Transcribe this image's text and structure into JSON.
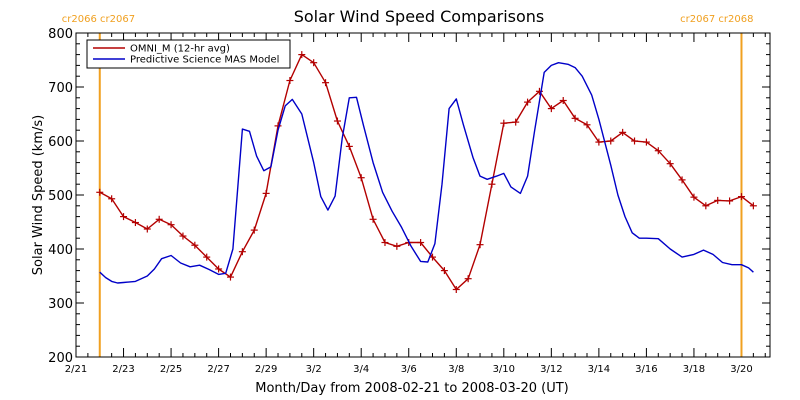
{
  "chart_data": {
    "type": "line",
    "title": "Solar Wind Speed Comparisons",
    "xlabel": "Month/Day from 2008-02-21 to 2008-03-20 (UT)",
    "ylabel": "Solar Wind Speed (km/s)",
    "ylim": [
      200,
      800
    ],
    "y_ticks": [
      200,
      300,
      400,
      500,
      600,
      700,
      800
    ],
    "x_range_days": [
      0,
      29.2
    ],
    "x_ticks": [
      {
        "day": 0,
        "label": "2/21"
      },
      {
        "day": 2,
        "label": "2/23"
      },
      {
        "day": 4,
        "label": "2/25"
      },
      {
        "day": 6,
        "label": "2/27"
      },
      {
        "day": 8,
        "label": "2/29"
      },
      {
        "day": 10,
        "label": "3/2"
      },
      {
        "day": 12,
        "label": "3/4"
      },
      {
        "day": 14,
        "label": "3/6"
      },
      {
        "day": 16,
        "label": "3/8"
      },
      {
        "day": 18,
        "label": "3/10"
      },
      {
        "day": 20,
        "label": "3/12"
      },
      {
        "day": 22,
        "label": "3/14"
      },
      {
        "day": 24,
        "label": "3/16"
      },
      {
        "day": 26,
        "label": "3/18"
      },
      {
        "day": 28,
        "label": "3/20"
      }
    ],
    "minor_tick_step_days": 0.5,
    "grid": false,
    "legend_position": "top-left",
    "rotation_markers": [
      {
        "day": 1.0,
        "label": "cr2066 cr2067",
        "anchor": "start"
      },
      {
        "day": 28.0,
        "label": "cr2067 cr2068",
        "anchor": "end"
      }
    ],
    "series": [
      {
        "name": "OMNI_M (12-hr avg)",
        "color": "#b30000",
        "marker": "plus",
        "points": [
          [
            1.0,
            505
          ],
          [
            1.5,
            493
          ],
          [
            2.0,
            460
          ],
          [
            2.5,
            449
          ],
          [
            3.0,
            437
          ],
          [
            3.5,
            455
          ],
          [
            4.0,
            445
          ],
          [
            4.5,
            424
          ],
          [
            5.0,
            407
          ],
          [
            5.5,
            385
          ],
          [
            6.0,
            363
          ],
          [
            6.5,
            348
          ],
          [
            7.0,
            395
          ],
          [
            7.5,
            435
          ],
          [
            8.0,
            503
          ],
          [
            8.5,
            628
          ],
          [
            9.0,
            712
          ],
          [
            9.5,
            760
          ],
          [
            10.0,
            745
          ],
          [
            10.5,
            708
          ],
          [
            11.0,
            637
          ],
          [
            11.5,
            590
          ],
          [
            12.0,
            532
          ],
          [
            12.5,
            455
          ],
          [
            13.0,
            412
          ],
          [
            13.5,
            405
          ],
          [
            14.0,
            412
          ],
          [
            14.5,
            412
          ],
          [
            15.0,
            385
          ],
          [
            15.5,
            360
          ],
          [
            16.0,
            325
          ],
          [
            16.5,
            345
          ],
          [
            17.0,
            408
          ],
          [
            17.5,
            520
          ],
          [
            18.0,
            633
          ],
          [
            18.5,
            635
          ],
          [
            19.0,
            672
          ],
          [
            19.5,
            692
          ],
          [
            20.0,
            660
          ],
          [
            20.5,
            675
          ],
          [
            21.0,
            642
          ],
          [
            21.5,
            630
          ],
          [
            22.0,
            598
          ],
          [
            22.5,
            600
          ],
          [
            23.0,
            616
          ],
          [
            23.5,
            600
          ],
          [
            24.0,
            598
          ],
          [
            24.5,
            582
          ],
          [
            25.0,
            558
          ],
          [
            25.5,
            528
          ],
          [
            26.0,
            496
          ],
          [
            26.5,
            480
          ],
          [
            27.0,
            490
          ],
          [
            27.5,
            489
          ],
          [
            28.0,
            497
          ],
          [
            28.5,
            480
          ]
        ]
      },
      {
        "name": "Predictive Science MAS Model",
        "color": "#0000c8",
        "marker": "none",
        "points": [
          [
            1.0,
            357
          ],
          [
            1.25,
            347
          ],
          [
            1.5,
            340
          ],
          [
            1.75,
            337
          ],
          [
            2.0,
            338
          ],
          [
            2.5,
            340
          ],
          [
            3.0,
            350
          ],
          [
            3.3,
            363
          ],
          [
            3.6,
            382
          ],
          [
            4.0,
            388
          ],
          [
            4.4,
            374
          ],
          [
            4.8,
            367
          ],
          [
            5.2,
            370
          ],
          [
            5.6,
            362
          ],
          [
            6.0,
            353
          ],
          [
            6.3,
            355
          ],
          [
            6.6,
            400
          ],
          [
            7.0,
            622
          ],
          [
            7.3,
            618
          ],
          [
            7.6,
            572
          ],
          [
            7.9,
            545
          ],
          [
            8.2,
            552
          ],
          [
            8.5,
            620
          ],
          [
            8.8,
            665
          ],
          [
            9.1,
            677
          ],
          [
            9.5,
            650
          ],
          [
            10.0,
            560
          ],
          [
            10.3,
            497
          ],
          [
            10.6,
            472
          ],
          [
            10.9,
            498
          ],
          [
            11.2,
            605
          ],
          [
            11.5,
            680
          ],
          [
            11.8,
            681
          ],
          [
            12.1,
            628
          ],
          [
            12.5,
            560
          ],
          [
            12.9,
            505
          ],
          [
            13.3,
            470
          ],
          [
            13.7,
            440
          ],
          [
            14.1,
            405
          ],
          [
            14.5,
            377
          ],
          [
            14.8,
            376
          ],
          [
            15.1,
            410
          ],
          [
            15.4,
            520
          ],
          [
            15.7,
            660
          ],
          [
            16.0,
            678
          ],
          [
            16.3,
            630
          ],
          [
            16.7,
            570
          ],
          [
            17.0,
            535
          ],
          [
            17.3,
            529
          ],
          [
            17.7,
            535
          ],
          [
            18.0,
            540
          ],
          [
            18.3,
            515
          ],
          [
            18.7,
            503
          ],
          [
            19.0,
            535
          ],
          [
            19.3,
            620
          ],
          [
            19.7,
            727
          ],
          [
            20.0,
            740
          ],
          [
            20.3,
            745
          ],
          [
            20.7,
            742
          ],
          [
            21.0,
            736
          ],
          [
            21.3,
            720
          ],
          [
            21.7,
            685
          ],
          [
            22.0,
            640
          ],
          [
            22.5,
            555
          ],
          [
            22.8,
            500
          ],
          [
            23.1,
            460
          ],
          [
            23.4,
            430
          ],
          [
            23.7,
            420
          ],
          [
            24.0,
            420
          ],
          [
            24.5,
            419
          ],
          [
            25.0,
            400
          ],
          [
            25.5,
            385
          ],
          [
            26.0,
            390
          ],
          [
            26.4,
            398
          ],
          [
            26.8,
            390
          ],
          [
            27.2,
            375
          ],
          [
            27.6,
            371
          ],
          [
            28.0,
            371
          ],
          [
            28.3,
            365
          ],
          [
            28.5,
            357
          ]
        ]
      }
    ]
  }
}
